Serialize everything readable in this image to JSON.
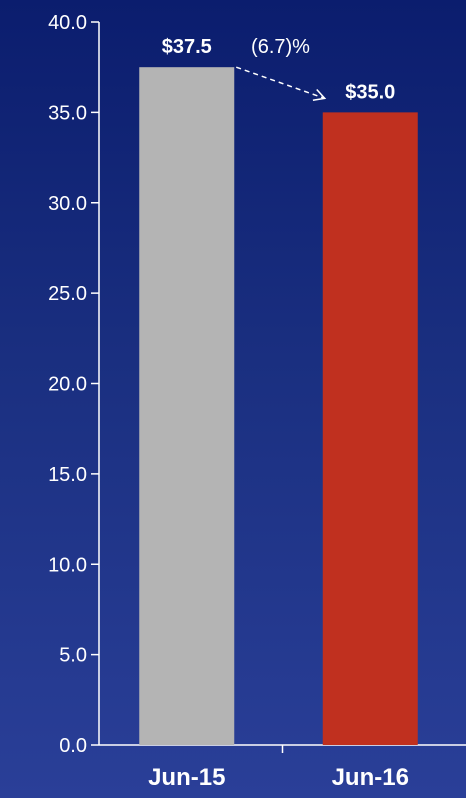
{
  "chart_data": {
    "type": "bar",
    "categories": [
      "Jun-15",
      "Jun-16"
    ],
    "values": [
      37.5,
      35.0
    ],
    "value_labels": [
      "$37.5",
      "$35.0"
    ],
    "bar_colors": [
      "#b4b4b4",
      "#c0301f"
    ],
    "ylim": [
      0,
      40
    ],
    "yticks": [
      0,
      5,
      10,
      15,
      20,
      25,
      30,
      35,
      40
    ],
    "ytick_labels": [
      "0.0",
      "5.0",
      "10.0",
      "15.0",
      "20.0",
      "25.0",
      "30.0",
      "35.0",
      "40.0"
    ],
    "change_label": "(6.7)%",
    "title": "",
    "xlabel": "",
    "ylabel": "",
    "grid": false,
    "legend": "none"
  },
  "colors": {
    "axis": "#ffffff",
    "text": "#ffffff"
  }
}
